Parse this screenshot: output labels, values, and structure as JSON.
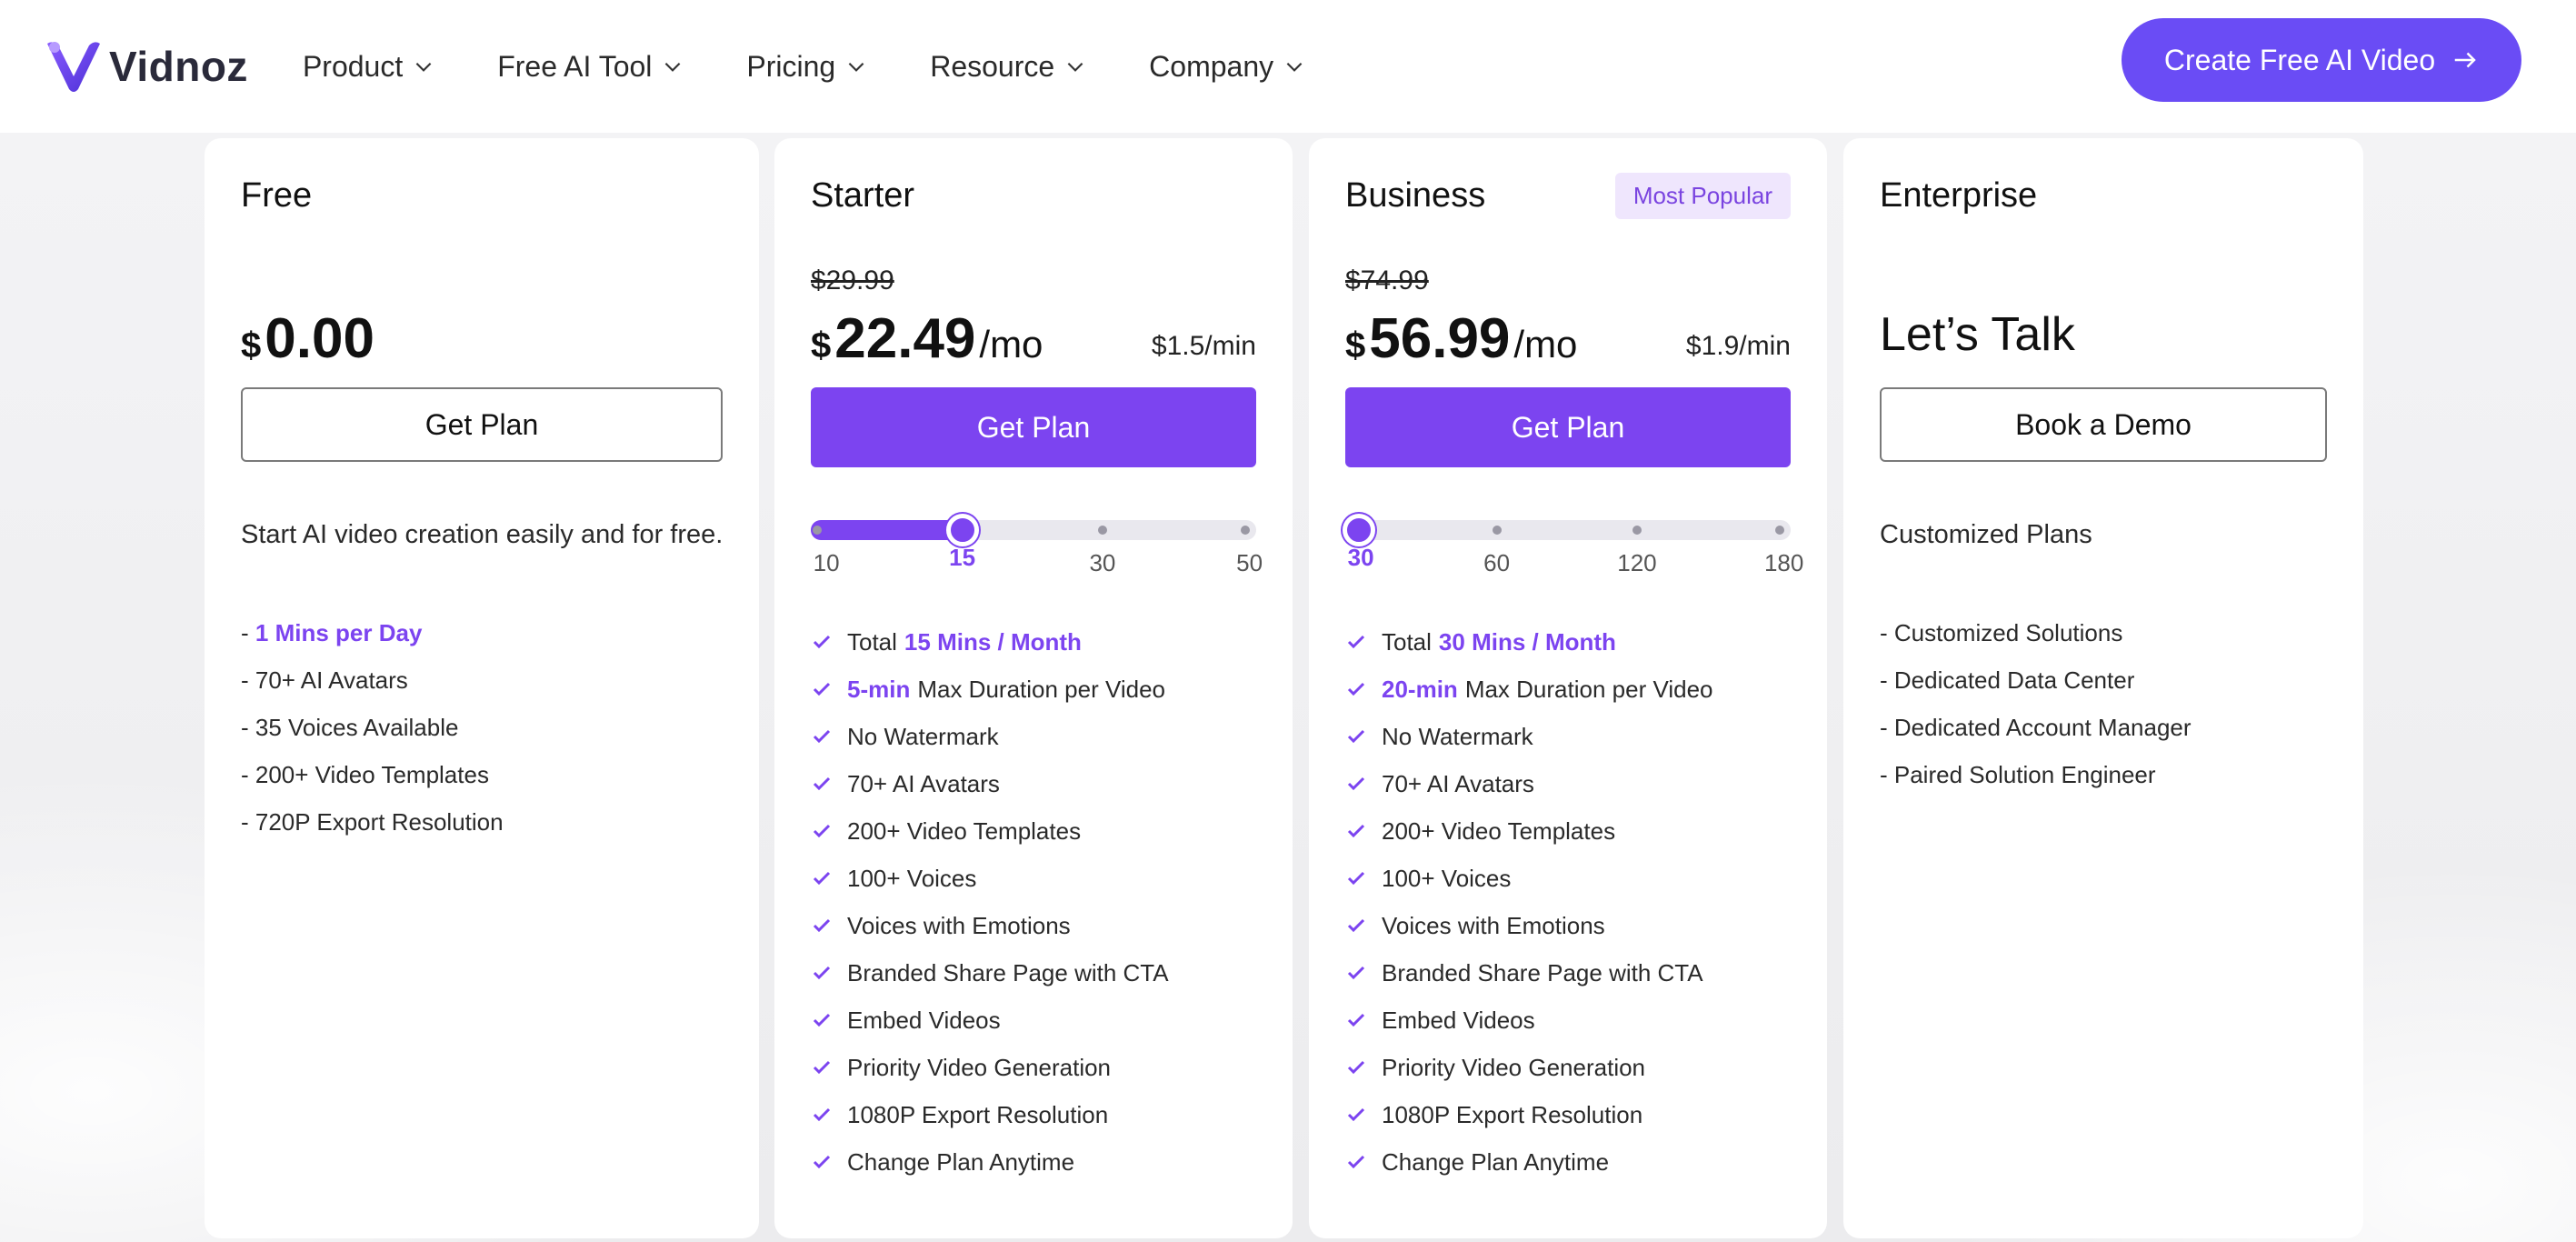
{
  "header": {
    "logo_text": "Vidnoz",
    "nav": [
      "Product",
      "Free AI Tool",
      "Pricing",
      "Resource",
      "Company"
    ],
    "cta_label": "Create Free AI Video"
  },
  "colors": {
    "accent": "#7c44f0",
    "cta": "#6a4cf5",
    "badge_bg": "#efe6fd"
  },
  "plans": {
    "free": {
      "name": "Free",
      "currency": "$",
      "price": "0.00",
      "button": "Get Plan",
      "description": "Start AI video creation easily and for free.",
      "features": [
        {
          "prefix": "- ",
          "highlight": "1 Mins per Day"
        },
        {
          "prefix": "- 70+ AI Avatars",
          "highlight": ""
        },
        {
          "prefix": "- 35 Voices Available",
          "highlight": ""
        },
        {
          "prefix": "- 200+ Video Templates",
          "highlight": ""
        },
        {
          "prefix": "- 720P Export Resolution",
          "highlight": ""
        }
      ]
    },
    "starter": {
      "name": "Starter",
      "old_price": "$29.99",
      "currency": "$",
      "price": "22.49",
      "period": "/mo",
      "per_min": "$1.5/min",
      "button": "Get Plan",
      "slider": {
        "ticks": [
          "10",
          "15",
          "30",
          "50"
        ],
        "selected_index": 1,
        "fill_fraction": 0.34
      },
      "features": [
        {
          "pre": "Total",
          "hl": "15 Mins / Month",
          "post": ""
        },
        {
          "pre": "",
          "hl": "5-min",
          "post": "Max Duration per Video"
        },
        {
          "pre": "No Watermark",
          "hl": "",
          "post": ""
        },
        {
          "pre": "70+ AI Avatars",
          "hl": "",
          "post": ""
        },
        {
          "pre": "200+ Video Templates",
          "hl": "",
          "post": ""
        },
        {
          "pre": "100+ Voices",
          "hl": "",
          "post": ""
        },
        {
          "pre": "Voices with Emotions",
          "hl": "",
          "post": ""
        },
        {
          "pre": "Branded Share Page with CTA",
          "hl": "",
          "post": ""
        },
        {
          "pre": "Embed Videos",
          "hl": "",
          "post": ""
        },
        {
          "pre": "Priority Video Generation",
          "hl": "",
          "post": ""
        },
        {
          "pre": "1080P Export Resolution",
          "hl": "",
          "post": ""
        },
        {
          "pre": "Change Plan Anytime",
          "hl": "",
          "post": ""
        }
      ]
    },
    "business": {
      "name": "Business",
      "badge": "Most Popular",
      "old_price": "$74.99",
      "currency": "$",
      "price": "56.99",
      "period": "/mo",
      "per_min": "$1.9/min",
      "button": "Get Plan",
      "slider": {
        "ticks": [
          "30",
          "60",
          "120",
          "180"
        ],
        "selected_index": 0,
        "fill_fraction": 0.0
      },
      "features": [
        {
          "pre": "Total",
          "hl": "30 Mins / Month",
          "post": ""
        },
        {
          "pre": "",
          "hl": "20-min",
          "post": "Max Duration per Video"
        },
        {
          "pre": "No Watermark",
          "hl": "",
          "post": ""
        },
        {
          "pre": "70+ AI Avatars",
          "hl": "",
          "post": ""
        },
        {
          "pre": "200+ Video Templates",
          "hl": "",
          "post": ""
        },
        {
          "pre": "100+ Voices",
          "hl": "",
          "post": ""
        },
        {
          "pre": "Voices with Emotions",
          "hl": "",
          "post": ""
        },
        {
          "pre": "Branded Share Page with CTA",
          "hl": "",
          "post": ""
        },
        {
          "pre": "Embed Videos",
          "hl": "",
          "post": ""
        },
        {
          "pre": "Priority Video Generation",
          "hl": "",
          "post": ""
        },
        {
          "pre": "1080P Export Resolution",
          "hl": "",
          "post": ""
        },
        {
          "pre": "Change Plan Anytime",
          "hl": "",
          "post": ""
        }
      ]
    },
    "enterprise": {
      "name": "Enterprise",
      "headline": "Let’s Talk",
      "button": "Book a Demo",
      "description": "Customized Plans",
      "features": [
        "- Customized Solutions",
        "- Dedicated Data Center",
        "- Dedicated Account Manager",
        "- Paired Solution Engineer"
      ]
    }
  }
}
